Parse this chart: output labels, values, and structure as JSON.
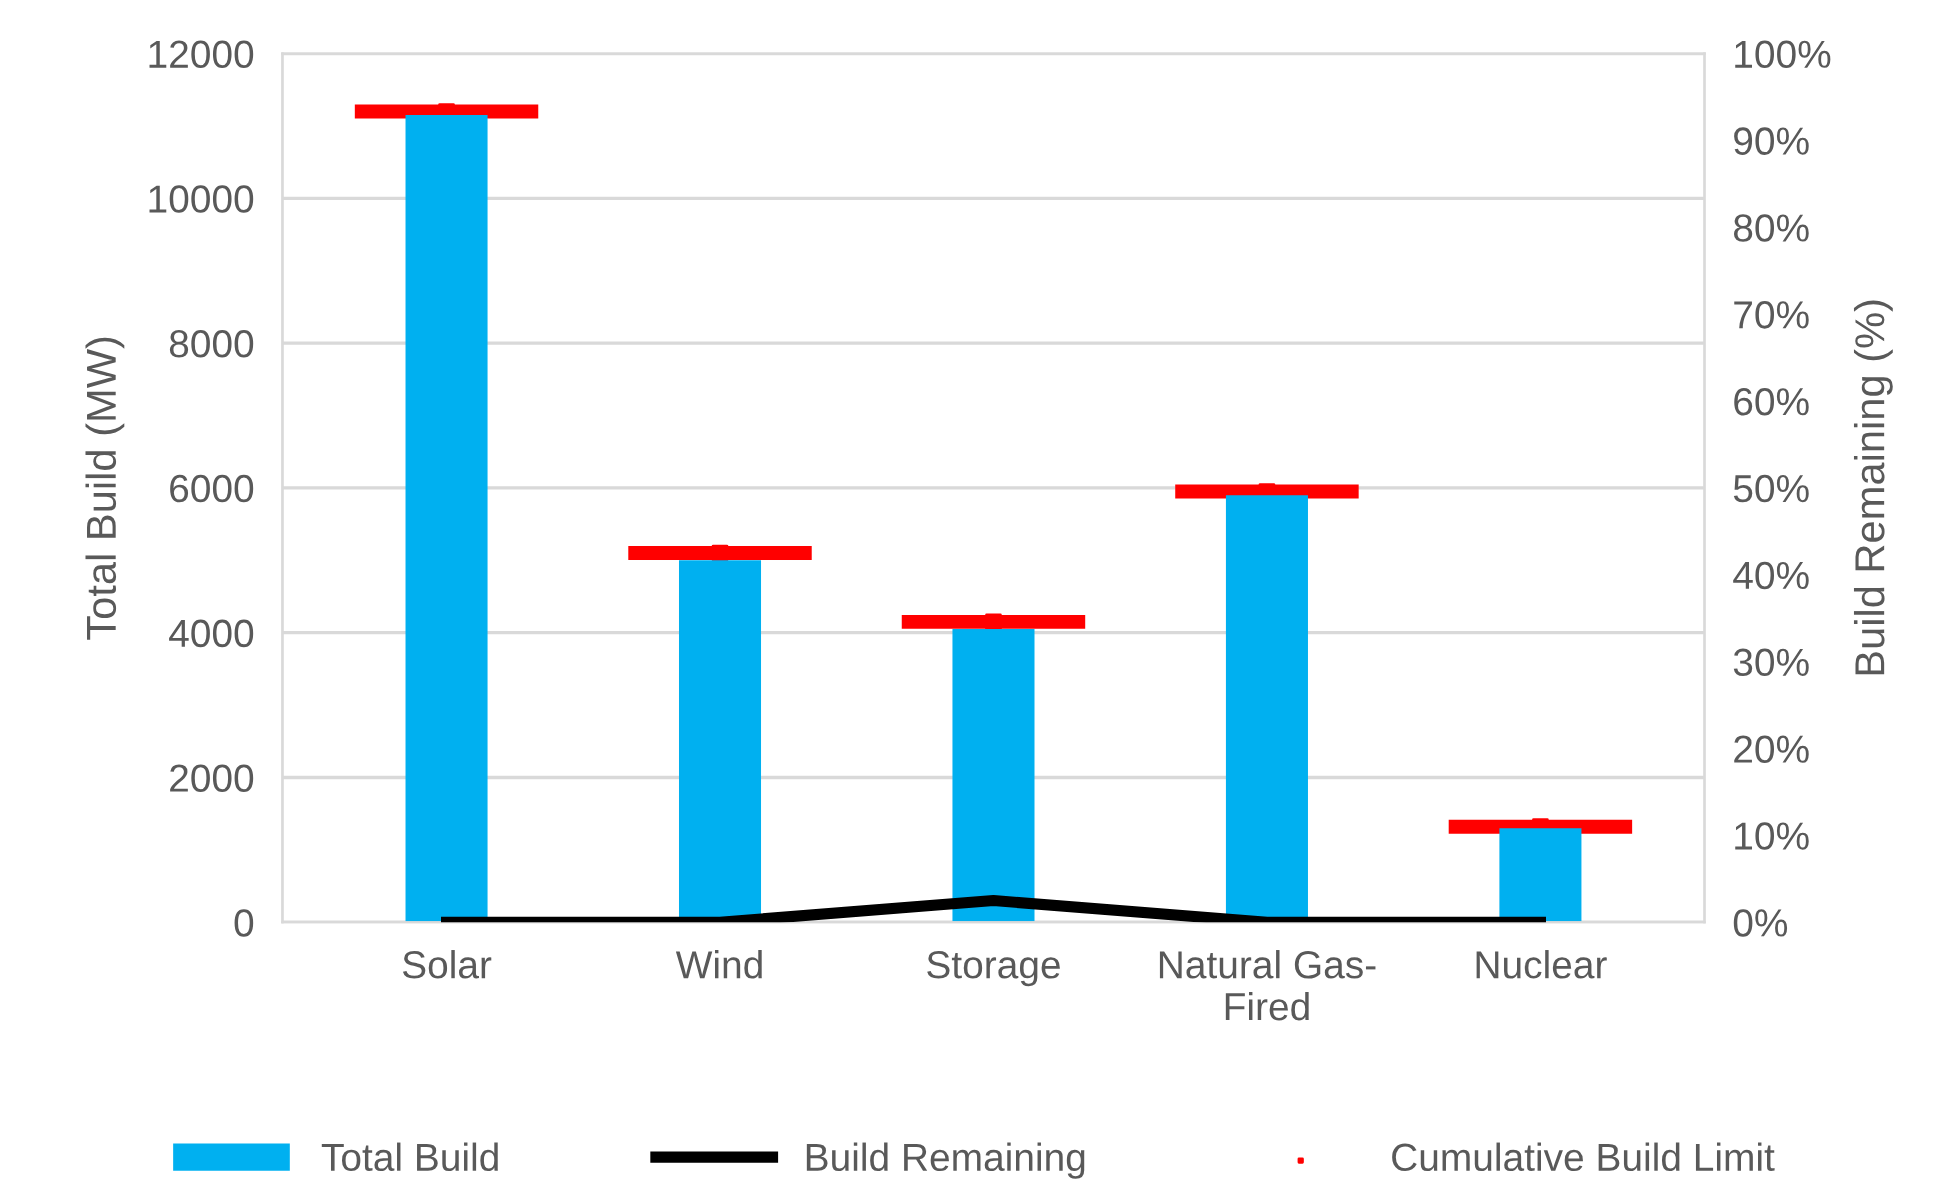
{
  "chart_data": {
    "type": "bar",
    "categories": [
      "Solar",
      "Wind",
      "Storage",
      "Natural Gas-\nFired",
      "Nuclear"
    ],
    "ylabel": "Total Build (MW)",
    "y2label": "Build Remaining (%)",
    "ylim": [
      0,
      12000
    ],
    "yticks": [
      0,
      2000,
      4000,
      6000,
      8000,
      10000,
      12000
    ],
    "y2lim": [
      0,
      100
    ],
    "y2ticks": [
      {
        "value": 0,
        "label": "0%"
      },
      {
        "value": 10,
        "label": "10%"
      },
      {
        "value": 20,
        "label": "20%"
      },
      {
        "value": 30,
        "label": "30%"
      },
      {
        "value": 40,
        "label": "40%"
      },
      {
        "value": 50,
        "label": "50%"
      },
      {
        "value": 60,
        "label": "60%"
      },
      {
        "value": 70,
        "label": "70%"
      },
      {
        "value": 80,
        "label": "80%"
      },
      {
        "value": 90,
        "label": "90%"
      },
      {
        "value": 100,
        "label": "100%"
      }
    ],
    "grid": "y",
    "legend": "bottom",
    "series": [
      {
        "name": "Total Build",
        "type": "bar",
        "color": "#00b0f0",
        "values": [
          11150,
          5000,
          4050,
          5900,
          1300
        ]
      },
      {
        "name": "Build Remaining",
        "type": "line",
        "axis": "y2",
        "color": "#000000",
        "values": [
          0,
          0,
          2.5,
          0,
          0
        ]
      },
      {
        "name": "Cumulative Build Limit",
        "type": "scatter",
        "marker": "square",
        "color": "#ff0000",
        "values": [
          11200,
          5100,
          4150,
          5950,
          1320
        ]
      }
    ]
  }
}
